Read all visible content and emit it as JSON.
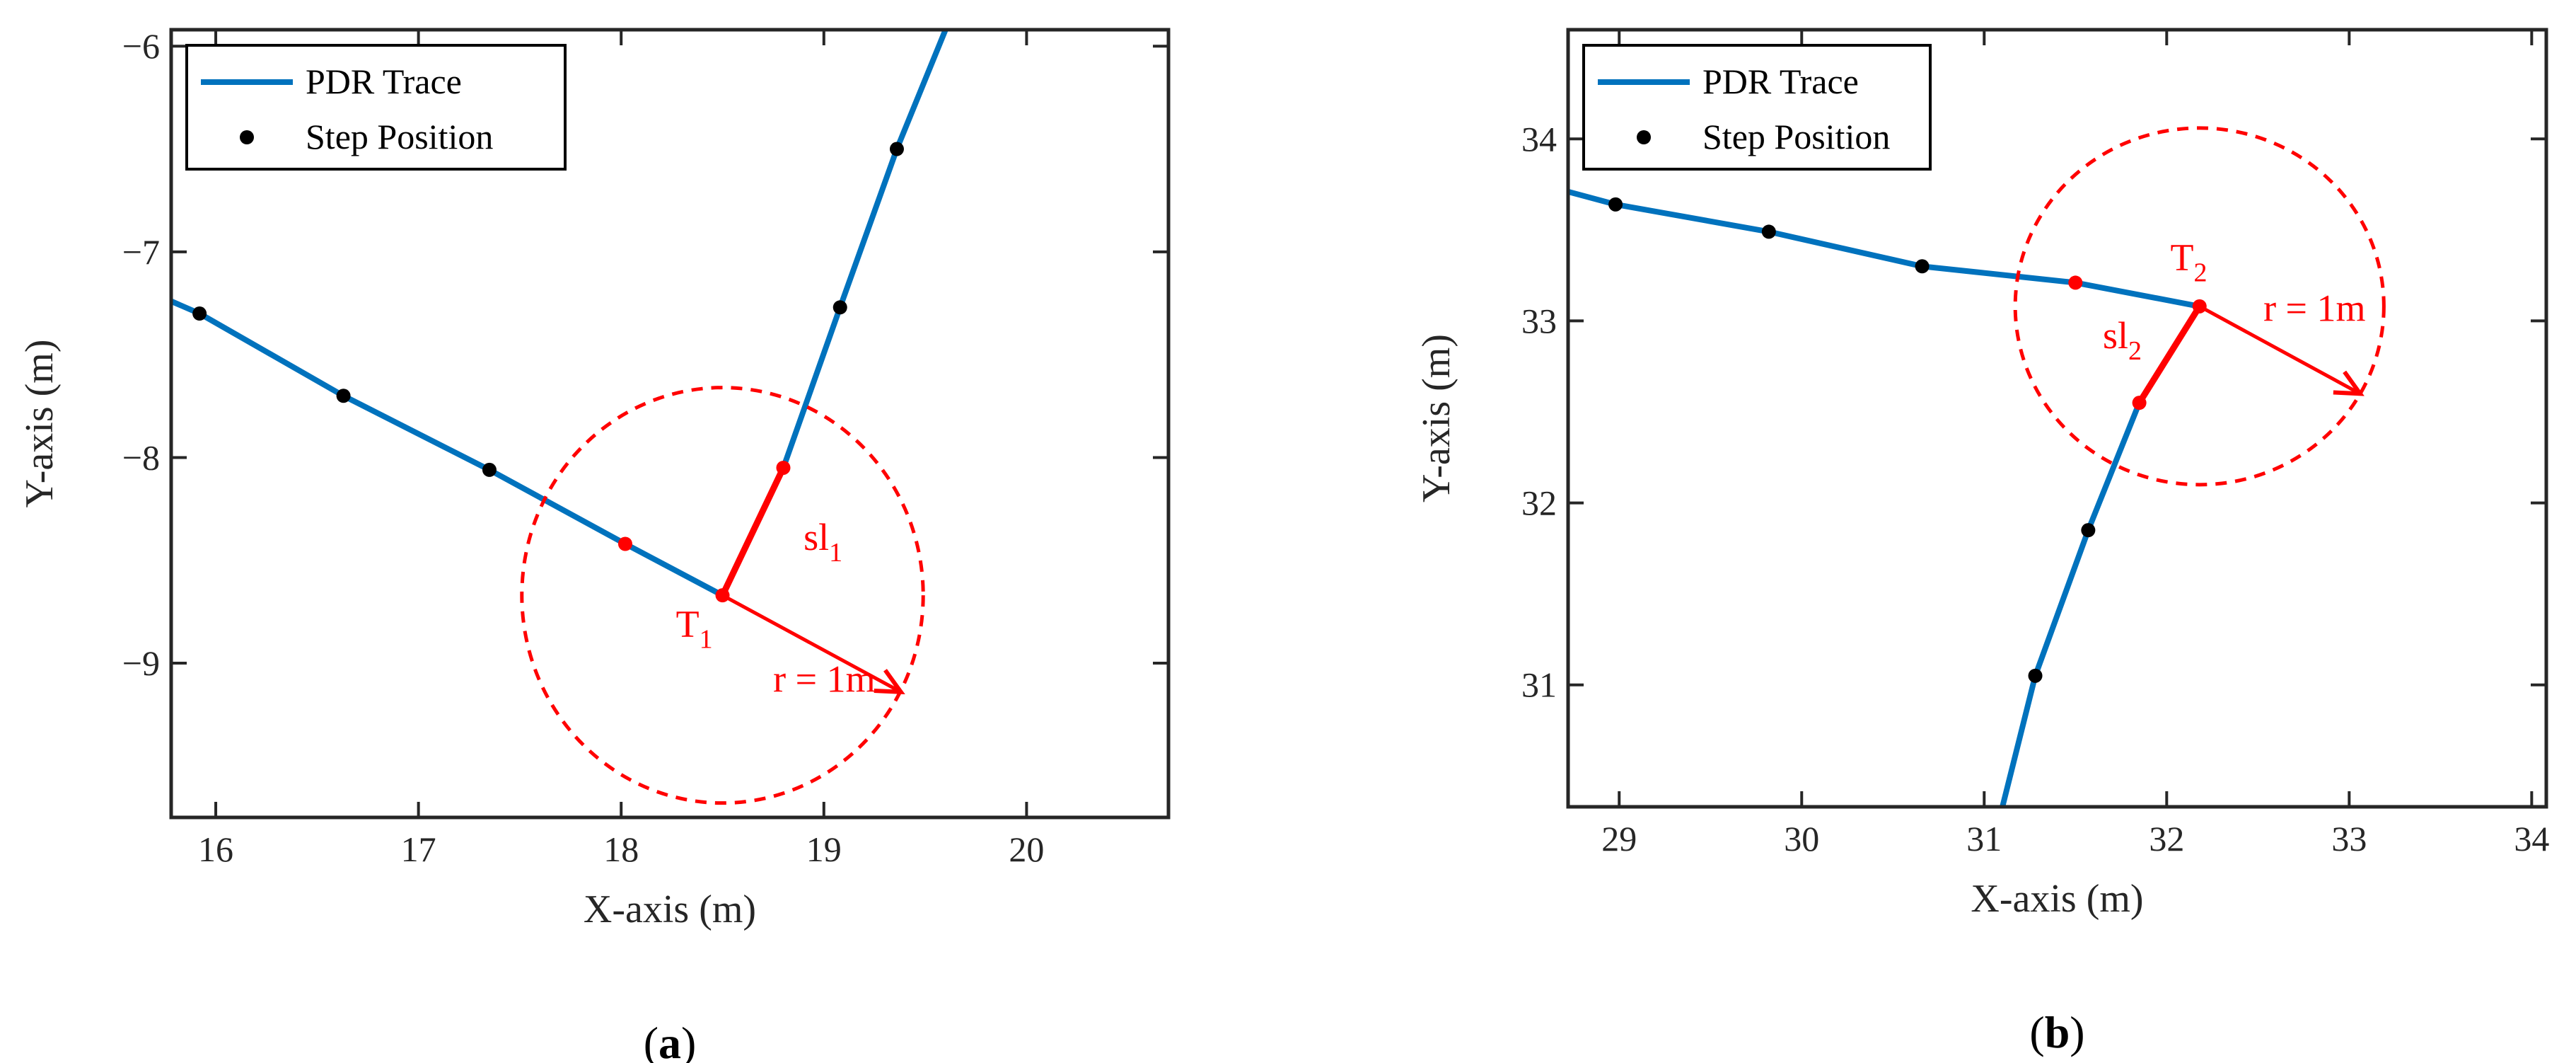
{
  "colors": {
    "trace": "#0072BD",
    "step": "#000000",
    "highlight": "#FF0000",
    "axis": "#262626"
  },
  "chart_data": [
    {
      "panel_label": {
        "open": "(",
        "letter": "a",
        "close": ")"
      },
      "type": "line",
      "xlabel": "X-axis (m)",
      "ylabel": "Y-axis (m)",
      "xlim": [
        15.78,
        20.7
      ],
      "ylim": [
        -9.75,
        -5.92
      ],
      "xticks": [
        16,
        17,
        18,
        19,
        20
      ],
      "yticks": [
        -6,
        -7,
        -8,
        -9
      ],
      "legend": {
        "position": "top-left",
        "entries": [
          "PDR Trace",
          "Step Position"
        ]
      },
      "series": [
        {
          "name": "PDR Trace",
          "kind": "line",
          "points": [
            [
              15.78,
              -7.24
            ],
            [
              15.92,
              -7.3
            ],
            [
              16.63,
              -7.7
            ],
            [
              17.35,
              -8.06
            ],
            [
              18.02,
              -8.42
            ],
            [
              18.5,
              -8.67
            ],
            [
              18.8,
              -8.05
            ],
            [
              19.08,
              -7.27
            ],
            [
              19.36,
              -6.5
            ],
            [
              19.6,
              -5.92
            ]
          ]
        },
        {
          "name": "Step Position",
          "kind": "scatter",
          "points": [
            [
              15.92,
              -7.3
            ],
            [
              16.63,
              -7.7
            ],
            [
              17.35,
              -8.06
            ],
            [
              19.08,
              -7.27
            ],
            [
              19.36,
              -6.5
            ]
          ]
        }
      ],
      "annotations": {
        "circle": {
          "center": [
            18.5,
            -8.67
          ],
          "radius_x": 0.99,
          "radius_y": 1.01
        },
        "highlight_points": [
          [
            18.02,
            -8.42
          ],
          [
            18.5,
            -8.67
          ],
          [
            18.8,
            -8.05
          ]
        ],
        "highlight_segment": [
          [
            18.5,
            -8.67
          ],
          [
            18.8,
            -8.05
          ]
        ],
        "arrow": {
          "from": [
            18.5,
            -8.67
          ],
          "to": [
            19.38,
            -9.14
          ]
        },
        "turn_label": {
          "text": "T",
          "sub": "1",
          "at": [
            18.27,
            -8.87
          ]
        },
        "step_label": {
          "text": "sl",
          "sub": "1",
          "at": [
            18.9,
            -8.45
          ]
        },
        "radius_label": {
          "text": "r = 1m",
          "at": [
            18.75,
            -9.14
          ]
        }
      }
    },
    {
      "panel_label": {
        "open": "(",
        "letter": "b",
        "close": ")"
      },
      "type": "line",
      "xlabel": "X-axis (m)",
      "ylabel": "Y-axis (m)",
      "xlim": [
        28.72,
        34.08
      ],
      "ylim": [
        30.33,
        34.6
      ],
      "xticks": [
        29,
        30,
        31,
        32,
        33,
        34
      ],
      "yticks": [
        31,
        32,
        33,
        34
      ],
      "legend": {
        "position": "top-left",
        "entries": [
          "PDR Trace",
          "Step Position"
        ]
      },
      "series": [
        {
          "name": "PDR Trace",
          "kind": "line",
          "points": [
            [
              28.72,
              33.71
            ],
            [
              28.98,
              33.64
            ],
            [
              29.82,
              33.49
            ],
            [
              30.66,
              33.3
            ],
            [
              31.5,
              33.21
            ],
            [
              32.18,
              33.08
            ],
            [
              31.85,
              32.55
            ],
            [
              31.57,
              31.85
            ],
            [
              31.28,
              31.05
            ],
            [
              31.1,
              30.33
            ]
          ]
        },
        {
          "name": "Step Position",
          "kind": "scatter",
          "points": [
            [
              28.98,
              33.64
            ],
            [
              29.82,
              33.49
            ],
            [
              30.66,
              33.3
            ],
            [
              31.57,
              31.85
            ],
            [
              31.28,
              31.05
            ]
          ]
        }
      ],
      "annotations": {
        "circle": {
          "center": [
            32.18,
            33.08
          ],
          "radius_x": 1.01,
          "radius_y": 0.98
        },
        "highlight_points": [
          [
            31.5,
            33.21
          ],
          [
            32.18,
            33.08
          ],
          [
            31.85,
            32.55
          ]
        ],
        "highlight_segment": [
          [
            32.18,
            33.08
          ],
          [
            31.85,
            32.55
          ]
        ],
        "arrow": {
          "from": [
            32.18,
            33.08
          ],
          "to": [
            33.06,
            32.6
          ]
        },
        "turn_label": {
          "text": "T",
          "sub": "2",
          "at": [
            32.02,
            33.28
          ]
        },
        "step_label": {
          "text": "sl",
          "sub": "2",
          "at": [
            31.65,
            32.85
          ]
        },
        "radius_label": {
          "text": "r = 1m",
          "at": [
            32.53,
            33.0
          ]
        }
      }
    }
  ]
}
